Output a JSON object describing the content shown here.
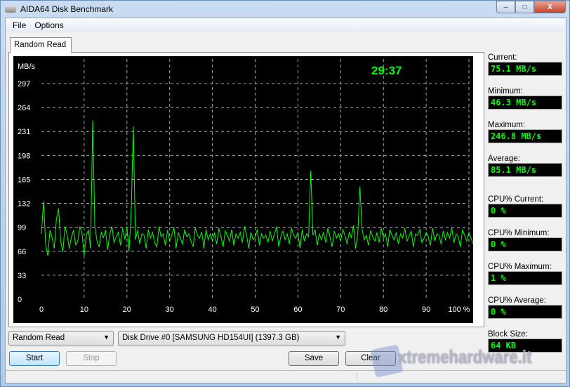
{
  "window": {
    "title": "AIDA64 Disk Benchmark",
    "minimize": "–",
    "maximize": "□",
    "close": "X"
  },
  "menu": [
    "File",
    "Options"
  ],
  "tab": "Random Read",
  "chart_data": {
    "type": "line",
    "ylabel": "MB/s",
    "overlay_time": "29:37",
    "ylim": [
      0,
      297
    ],
    "yticks": [
      0,
      33,
      66,
      99,
      132,
      165,
      198,
      231,
      264,
      297
    ],
    "xlim": [
      0,
      100
    ],
    "xticks": [
      "0",
      "10",
      "20",
      "30",
      "40",
      "50",
      "60",
      "70",
      "80",
      "90",
      "100 %"
    ],
    "xtick_values": [
      0,
      10,
      20,
      30,
      40,
      50,
      60,
      70,
      80,
      90,
      100
    ],
    "grid": true,
    "line_color": "#00ff00",
    "series": [
      {
        "x_step": 0.5,
        "values": [
          90,
          135,
          75,
          60,
          95,
          85,
          70,
          110,
          125,
          80,
          65,
          100,
          90,
          70,
          85,
          95,
          75,
          80,
          100,
          90,
          60,
          88,
          95,
          70,
          246,
          100,
          80,
          72,
          92,
          85,
          95,
          68,
          90,
          100,
          78,
          86,
          92,
          74,
          98,
          82,
          100,
          66,
          120,
          238,
          82,
          95,
          76,
          90,
          88,
          70,
          96,
          84,
          92,
          78,
          72,
          100,
          86,
          90,
          74,
          95,
          80,
          88,
          99,
          70,
          92,
          84,
          76,
          96,
          86,
          90,
          80,
          72,
          98,
          88,
          84,
          93,
          70,
          96,
          82,
          90,
          80,
          92,
          76,
          98,
          86,
          72,
          94,
          88,
          80,
          96,
          74,
          90,
          84,
          92,
          78,
          100,
          88,
          70,
          92,
          82,
          86,
          96,
          74,
          90,
          84,
          88,
          78,
          94,
          80,
          90,
          100,
          72,
          86,
          94,
          82,
          90,
          76,
          98,
          88,
          84,
          92,
          70,
          96,
          80,
          90,
          86,
          177,
          88,
          96,
          74,
          90,
          82,
          92,
          78,
          98,
          86,
          72,
          94,
          84,
          90,
          80,
          96,
          88,
          76,
          92,
          85,
          102,
          70,
          90,
          155,
          96,
          82,
          88,
          74,
          95,
          86,
          80,
          92,
          78,
          98,
          84,
          90,
          72,
          96,
          88,
          82,
          92,
          76,
          90,
          84,
          98,
          80,
          86,
          94,
          72,
          90,
          88,
          96,
          78,
          84,
          92,
          86,
          74,
          98,
          80,
          90,
          88,
          76,
          94,
          82,
          92,
          84,
          98,
          78,
          90,
          86,
          72,
          96,
          88,
          80,
          92,
          84,
          76,
          90,
          75
        ]
      }
    ]
  },
  "stats": [
    {
      "label": "Current:",
      "value": "75.1 MB/s"
    },
    {
      "label": "Minimum:",
      "value": "46.3 MB/s"
    },
    {
      "label": "Maximum:",
      "value": "246.8 MB/s"
    },
    {
      "label": "Average:",
      "value": "85.1 MB/s"
    },
    {
      "label": "CPU% Current:",
      "value": "0 %"
    },
    {
      "label": "CPU% Minimum:",
      "value": "0 %"
    },
    {
      "label": "CPU% Maximum:",
      "value": "1 %"
    },
    {
      "label": "CPU% Average:",
      "value": "0 %"
    },
    {
      "label": "Block Size:",
      "value": "64 KB"
    }
  ],
  "controls": {
    "test_select": "Random Read",
    "drive_select": "Disk Drive #0  [SAMSUNG HD154UI]  (1397.3 GB)",
    "start": "Start",
    "stop": "Stop",
    "save": "Save",
    "clear": "Clear"
  },
  "watermark": "xtremehardware.it"
}
